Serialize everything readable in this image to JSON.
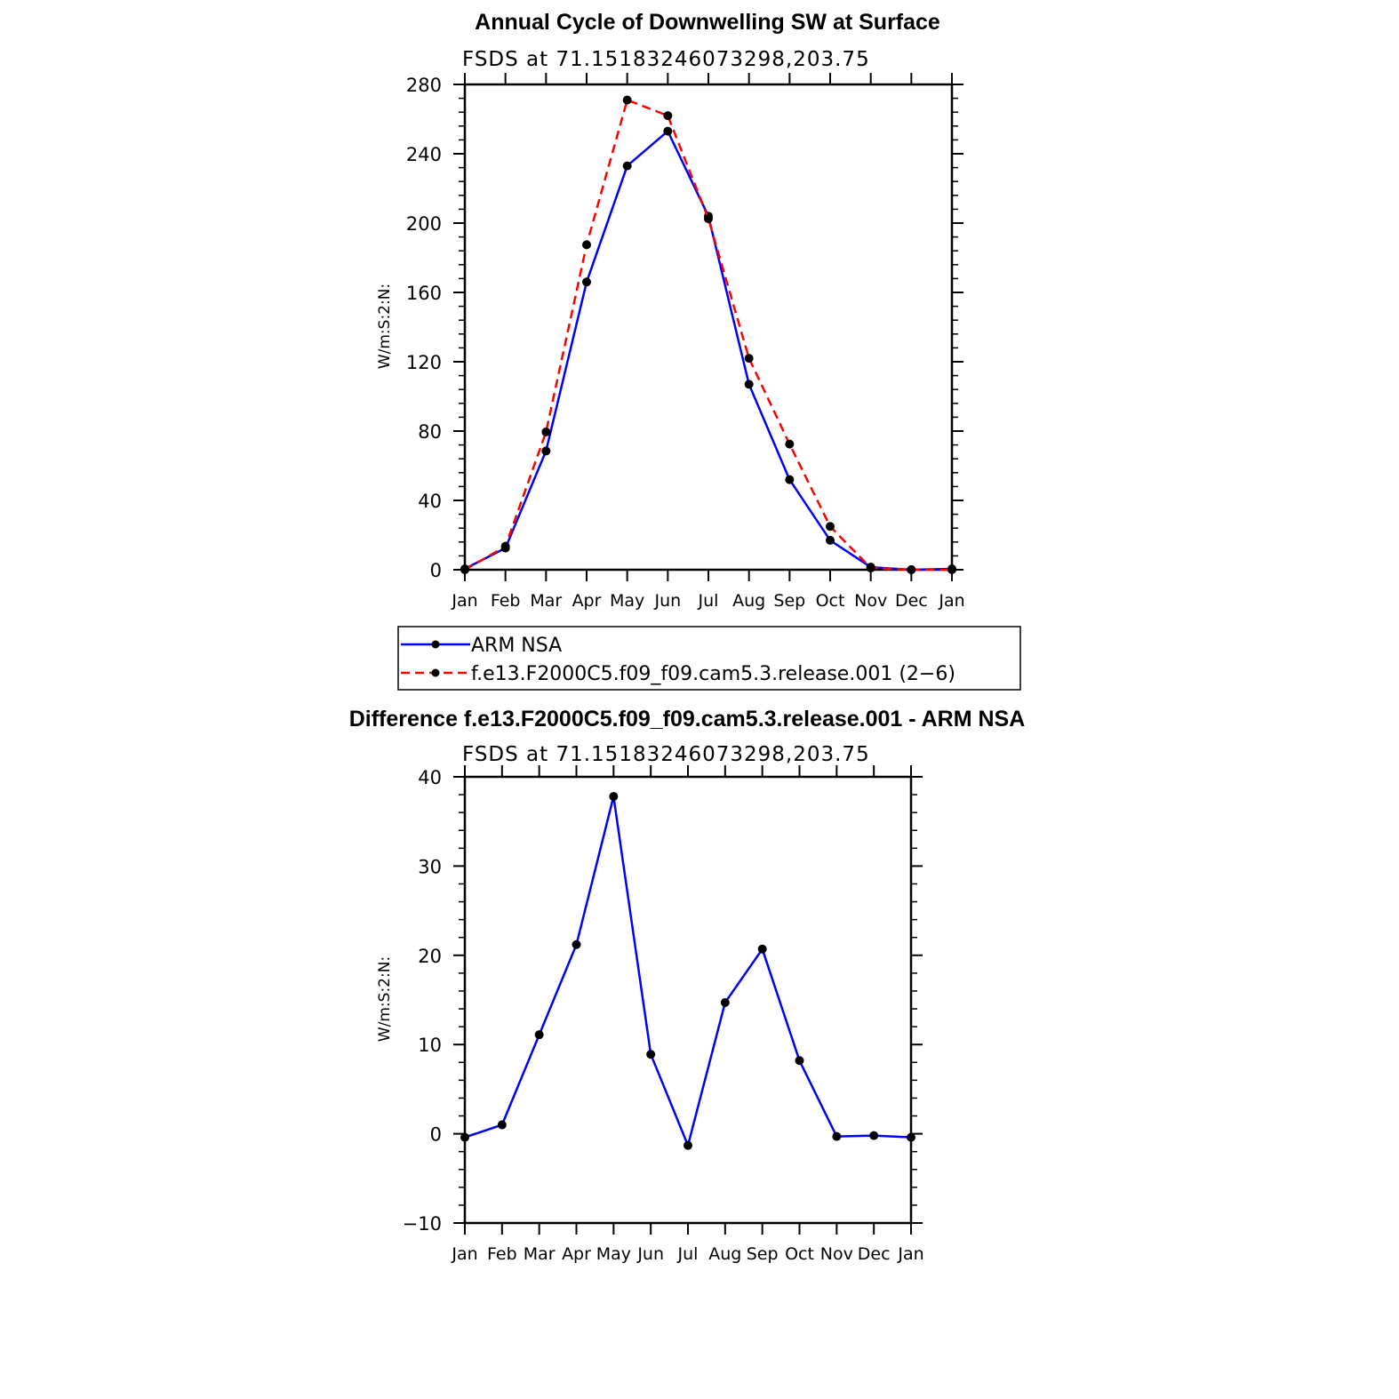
{
  "colors": {
    "series_a": "#0000ff",
    "series_b": "#ff0000",
    "marker": "#000000",
    "axis": "#000000"
  },
  "chart_data": [
    {
      "type": "line",
      "title": "Annual Cycle of Downwelling SW at Surface",
      "subtitle": "FSDS at 71.15183246073298,203.75",
      "ylabel": "W/m:S:2:N:",
      "xlabel": "",
      "ylim": [
        0,
        280
      ],
      "yticks": [
        0,
        40,
        80,
        120,
        160,
        200,
        240,
        280
      ],
      "ytick_labels": [
        "0",
        "40",
        "80",
        "120",
        "160",
        "200",
        "240",
        "280"
      ],
      "categories": [
        "Jan",
        "Feb",
        "Mar",
        "Apr",
        "May",
        "Jun",
        "Jul",
        "Aug",
        "Sep",
        "Oct",
        "Nov",
        "Dec",
        "Jan"
      ],
      "series": [
        {
          "name": "ARM NSA",
          "style": "solid",
          "color": "#0000ff",
          "values": [
            0.5,
            12.5,
            68.5,
            166,
            233,
            253,
            204,
            107,
            52,
            17,
            1.5,
            0,
            0.5
          ]
        },
        {
          "name": "f.e13.F2000C5.f09_f09.cam5.3.release.001 (2-6)",
          "style": "dashed",
          "color": "#ff0000",
          "values": [
            0,
            13.5,
            79.5,
            187.5,
            271,
            262,
            202.5,
            122,
            72.5,
            25,
            1,
            0,
            0
          ]
        }
      ],
      "legend": {
        "position": "below",
        "entries": [
          "ARM NSA",
          "f.e13.F2000C5.f09_f09.cam5.3.release.001 (2−6)"
        ]
      }
    },
    {
      "type": "line",
      "title": "Difference f.e13.F2000C5.f09_f09.cam5.3.release.001 - ARM NSA",
      "subtitle": "FSDS at 71.15183246073298,203.75",
      "ylabel": "W/m:S:2:N:",
      "xlabel": "",
      "ylim": [
        -10,
        40
      ],
      "yticks": [
        -10,
        0,
        10,
        20,
        30,
        40
      ],
      "ytick_labels": [
        "−10",
        "0",
        "10",
        "20",
        "30",
        "40"
      ],
      "categories": [
        "Jan",
        "Feb",
        "Mar",
        "Apr",
        "May",
        "Jun",
        "Jul",
        "Aug",
        "Sep",
        "Oct",
        "Nov",
        "Dec",
        "Jan"
      ],
      "series": [
        {
          "style": "solid",
          "color": "#0000ff",
          "values": [
            -0.4,
            1,
            11.1,
            21.2,
            37.8,
            8.9,
            -1.3,
            14.7,
            20.7,
            8.2,
            -0.3,
            -0.2,
            -0.4
          ]
        }
      ]
    }
  ]
}
